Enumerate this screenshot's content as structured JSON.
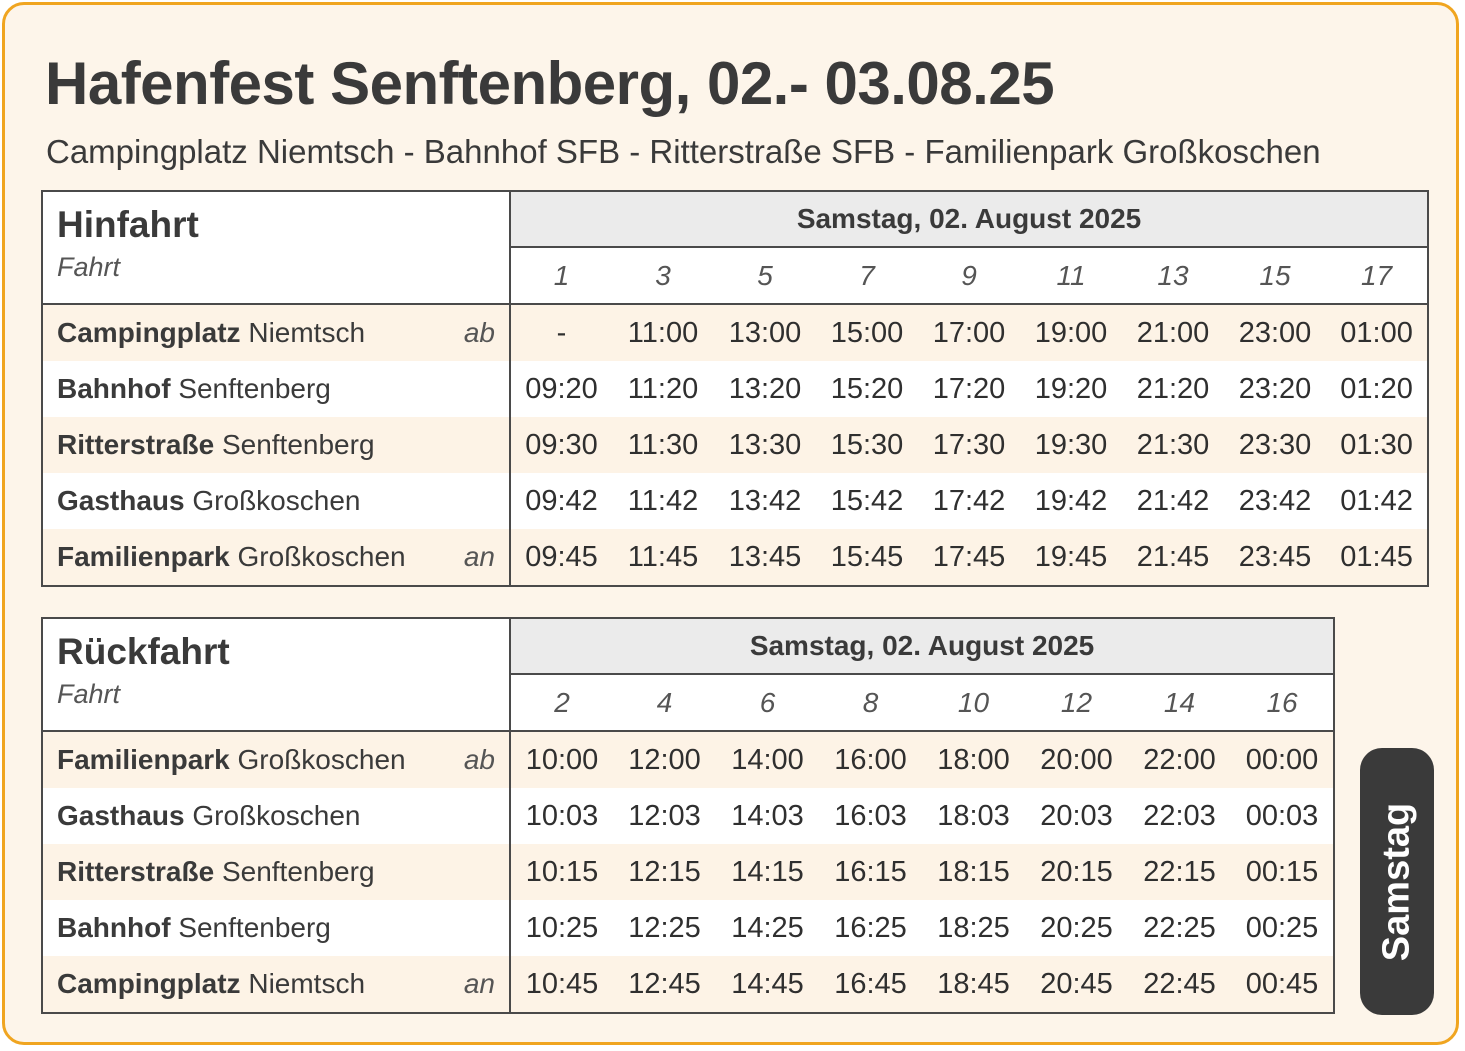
{
  "header": {
    "title": "Hafenfest Senftenberg, 02.- 03.08.25",
    "subtitle": "Campingplatz Niemtsch - Bahnhof SFB - Ritterstraße SFB  - Familienpark Großkoschen"
  },
  "hinfahrt": {
    "title": "Hinfahrt",
    "fahrt_label": "Fahrt",
    "day": "Samstag, 02. August 2025",
    "trips": [
      "1",
      "3",
      "5",
      "7",
      "9",
      "11",
      "13",
      "15",
      "17"
    ],
    "stops": [
      {
        "bold": "Campingplatz",
        "rest": "Niemtsch",
        "mark": "ab",
        "times": [
          "-",
          "11:00",
          "13:00",
          "15:00",
          "17:00",
          "19:00",
          "21:00",
          "23:00",
          "01:00"
        ]
      },
      {
        "bold": "Bahnhof",
        "rest": "Senftenberg",
        "mark": "",
        "times": [
          "09:20",
          "11:20",
          "13:20",
          "15:20",
          "17:20",
          "19:20",
          "21:20",
          "23:20",
          "01:20"
        ]
      },
      {
        "bold": "Ritterstraße",
        "rest": "Senftenberg",
        "mark": "",
        "times": [
          "09:30",
          "11:30",
          "13:30",
          "15:30",
          "17:30",
          "19:30",
          "21:30",
          "23:30",
          "01:30"
        ]
      },
      {
        "bold": "Gasthaus",
        "rest": "Großkoschen",
        "mark": "",
        "times": [
          "09:42",
          "11:42",
          "13:42",
          "15:42",
          "17:42",
          "19:42",
          "21:42",
          "23:42",
          "01:42"
        ]
      },
      {
        "bold": "Familienpark",
        "rest": "Großkoschen",
        "mark": "an",
        "times": [
          "09:45",
          "11:45",
          "13:45",
          "15:45",
          "17:45",
          "19:45",
          "21:45",
          "23:45",
          "01:45"
        ]
      }
    ]
  },
  "rueckfahrt": {
    "title": "Rückfahrt",
    "fahrt_label": "Fahrt",
    "day": "Samstag, 02. August 2025",
    "trips": [
      "2",
      "4",
      "6",
      "8",
      "10",
      "12",
      "14",
      "16"
    ],
    "stops": [
      {
        "bold": "Familienpark",
        "rest": "Großkoschen",
        "mark": "ab",
        "times": [
          "10:00",
          "12:00",
          "14:00",
          "16:00",
          "18:00",
          "20:00",
          "22:00",
          "00:00"
        ]
      },
      {
        "bold": "Gasthaus",
        "rest": "Großkoschen",
        "mark": "",
        "times": [
          "10:03",
          "12:03",
          "14:03",
          "16:03",
          "18:03",
          "20:03",
          "22:03",
          "00:03"
        ]
      },
      {
        "bold": "Ritterstraße",
        "rest": "Senftenberg",
        "mark": "",
        "times": [
          "10:15",
          "12:15",
          "14:15",
          "16:15",
          "18:15",
          "20:15",
          "22:15",
          "00:15"
        ]
      },
      {
        "bold": "Bahnhof",
        "rest": "Senftenberg",
        "mark": "",
        "times": [
          "10:25",
          "12:25",
          "14:25",
          "16:25",
          "18:25",
          "20:25",
          "22:25",
          "00:25"
        ]
      },
      {
        "bold": "Campingplatz",
        "rest": "Niemtsch",
        "mark": "an",
        "times": [
          "10:45",
          "12:45",
          "14:45",
          "16:45",
          "18:45",
          "20:45",
          "22:45",
          "00:45"
        ]
      }
    ]
  },
  "badge": {
    "label": "Samstag"
  },
  "colors": {
    "border": "#f0a520",
    "background": "#fdf5ea",
    "badge": "#3a3a3a",
    "alt_row": "#fdf3e6"
  }
}
